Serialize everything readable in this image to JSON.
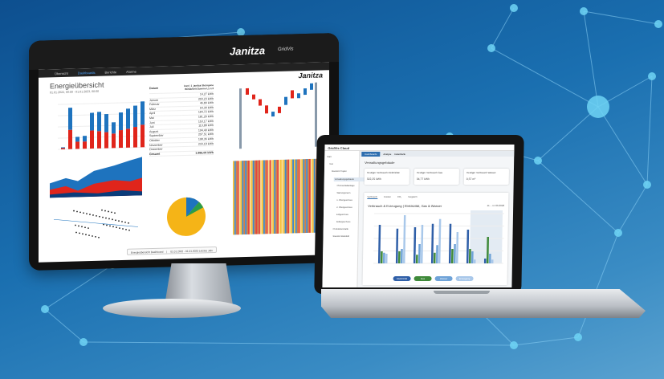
{
  "colors": {
    "red": "#e0251b",
    "blue": "#1e73be",
    "yellow": "#f5b417",
    "node": "#6fd3f5"
  },
  "monitor": {
    "brand": "Janitza",
    "brand_sub": "GridVis",
    "nav": [
      "Übersicht",
      "Dashboards",
      "Berichte",
      "Alarme"
    ],
    "title": "Energieübersicht",
    "subtitle": "01.01.2022, 00:00 - 01.01.2023, 00:00",
    "table": {
      "header_date": "Datum",
      "header_value": "level_1_janitza/ Bezogene Wirkarbeit Summe L1..L3",
      "first": "14,27 kWh",
      "rows": [
        [
          "Januar",
          "203,23 kWh"
        ],
        [
          "Februar",
          "46,80 kWh"
        ],
        [
          "März",
          "54,30 kWh"
        ],
        [
          "April",
          "184,72 kWh"
        ],
        [
          "Mai",
          "181,26 kWh"
        ],
        [
          "Juni",
          "153,17 kWh"
        ],
        [
          "Juli",
          "113,88 kWh"
        ],
        [
          "August",
          "194,40 kWh"
        ],
        [
          "September",
          "207,51 kWh"
        ],
        [
          "Oktober",
          "198,36 kWh"
        ],
        [
          "November",
          "233,18 kWh"
        ],
        [
          "Dezember",
          ""
        ]
      ],
      "total_label": "Gesamt",
      "total": "1.886,06 kWh"
    },
    "monthly_bars": {
      "red": [
        3,
        48,
        18,
        18,
        45,
        43,
        40,
        36,
        44,
        47,
        51,
        56
      ],
      "blue": [
        2,
        55,
        12,
        14,
        44,
        48,
        45,
        28,
        44,
        50,
        53,
        58
      ]
    },
    "pie_values": [
      90,
      4,
      3,
      2,
      1
    ],
    "footer": {
      "dashboard": "Energieübersicht Dashboard",
      "range": "01.01.2022 - 01.01.2023 Letztes Jahr"
    }
  },
  "laptop": {
    "app": "GridVis Cloud",
    "tabs": [
      "Dashboards",
      "Analyse",
      "Datenbank"
    ],
    "sidebar": [
      "Start",
      "Test",
      "Standort Projekt",
      "Verwaltungsgebäude",
      "Photovoltaikanlage",
      "Wartungsraum",
      "1. Obergeschoss",
      "2. Obergeschoss",
      "Erdgeschoss",
      "Kellergeschoss",
      "Produktionshalle",
      "Standort Bielefeld"
    ],
    "page_title": "Verwaltungsgebäude",
    "cards": [
      {
        "label": "Heutiger Verbrauch Elektrizität",
        "value": "322,25 kWh"
      },
      {
        "label": "Heutiger Verbrauch Gas",
        "value": "34,77 kWh"
      },
      {
        "label": "Heutiger Verbrauch Wasser",
        "value": "0,57 m³"
      }
    ],
    "chart_tabs": [
      "Verbrauch",
      "Kosten",
      "CO₂",
      "Vergleich"
    ],
    "chart_title": "Verbrauch & Erzeugung | Elektrizität, Gas & Wasser",
    "date_range": "11. - 17.06.2022",
    "bars": [
      [
        80,
        25,
        22,
        20
      ],
      [
        72,
        25,
        30,
        100
      ],
      [
        75,
        18,
        40,
        80
      ],
      [
        82,
        22,
        38,
        92
      ],
      [
        82,
        30,
        40,
        65
      ],
      [
        70,
        30,
        25,
        8
      ],
      [
        10,
        55,
        20,
        8
      ]
    ],
    "legend_pills": [
      "Elektrizität",
      "Gas",
      "Wasser",
      "Erzeugung"
    ]
  }
}
